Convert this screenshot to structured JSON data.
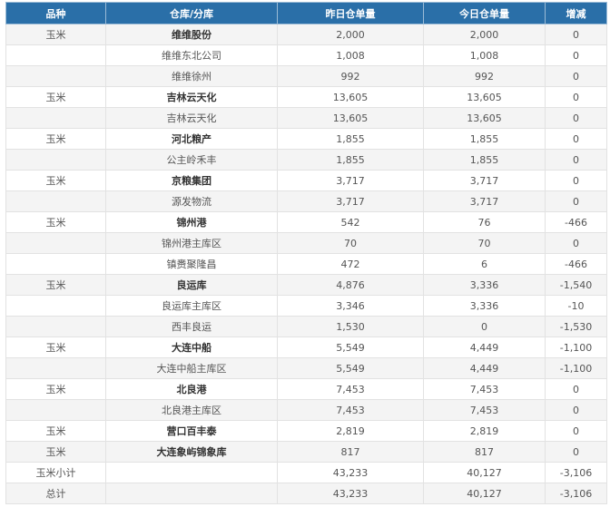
{
  "table": {
    "headers": [
      "品种",
      "仓库/分库",
      "昨日仓单量",
      "今日仓单量",
      "增减"
    ],
    "rows": [
      {
        "variety": "玉米",
        "warehouse": "维维股份",
        "yesterday": "2,000",
        "today": "2,000",
        "change": "0",
        "bold": true
      },
      {
        "variety": "",
        "warehouse": "维维东北公司",
        "yesterday": "1,008",
        "today": "1,008",
        "change": "0",
        "bold": false
      },
      {
        "variety": "",
        "warehouse": "维维徐州",
        "yesterday": "992",
        "today": "992",
        "change": "0",
        "bold": false
      },
      {
        "variety": "玉米",
        "warehouse": "吉林云天化",
        "yesterday": "13,605",
        "today": "13,605",
        "change": "0",
        "bold": true
      },
      {
        "variety": "",
        "warehouse": "吉林云天化",
        "yesterday": "13,605",
        "today": "13,605",
        "change": "0",
        "bold": false
      },
      {
        "variety": "玉米",
        "warehouse": "河北粮产",
        "yesterday": "1,855",
        "today": "1,855",
        "change": "0",
        "bold": true
      },
      {
        "variety": "",
        "warehouse": "公主岭禾丰",
        "yesterday": "1,855",
        "today": "1,855",
        "change": "0",
        "bold": false
      },
      {
        "variety": "玉米",
        "warehouse": "京粮集团",
        "yesterday": "3,717",
        "today": "3,717",
        "change": "0",
        "bold": true
      },
      {
        "variety": "",
        "warehouse": "源发物流",
        "yesterday": "3,717",
        "today": "3,717",
        "change": "0",
        "bold": false
      },
      {
        "variety": "玉米",
        "warehouse": "锦州港",
        "yesterday": "542",
        "today": "76",
        "change": "-466",
        "bold": true
      },
      {
        "variety": "",
        "warehouse": "锦州港主库区",
        "yesterday": "70",
        "today": "70",
        "change": "0",
        "bold": false
      },
      {
        "variety": "",
        "warehouse": "镇赉聚隆昌",
        "yesterday": "472",
        "today": "6",
        "change": "-466",
        "bold": false
      },
      {
        "variety": "玉米",
        "warehouse": "良运库",
        "yesterday": "4,876",
        "today": "3,336",
        "change": "-1,540",
        "bold": true
      },
      {
        "variety": "",
        "warehouse": "良运库主库区",
        "yesterday": "3,346",
        "today": "3,336",
        "change": "-10",
        "bold": false
      },
      {
        "variety": "",
        "warehouse": "西丰良运",
        "yesterday": "1,530",
        "today": "0",
        "change": "-1,530",
        "bold": false
      },
      {
        "variety": "玉米",
        "warehouse": "大连中船",
        "yesterday": "5,549",
        "today": "4,449",
        "change": "-1,100",
        "bold": true
      },
      {
        "variety": "",
        "warehouse": "大连中船主库区",
        "yesterday": "5,549",
        "today": "4,449",
        "change": "-1,100",
        "bold": false
      },
      {
        "variety": "玉米",
        "warehouse": "北良港",
        "yesterday": "7,453",
        "today": "7,453",
        "change": "0",
        "bold": true
      },
      {
        "variety": "",
        "warehouse": "北良港主库区",
        "yesterday": "7,453",
        "today": "7,453",
        "change": "0",
        "bold": false
      },
      {
        "variety": "玉米",
        "warehouse": "营口百丰泰",
        "yesterday": "2,819",
        "today": "2,819",
        "change": "0",
        "bold": true
      },
      {
        "variety": "玉米",
        "warehouse": "大连象屿锦象库",
        "yesterday": "817",
        "today": "817",
        "change": "0",
        "bold": true
      },
      {
        "variety": "玉米小计",
        "warehouse": "",
        "yesterday": "43,233",
        "today": "40,127",
        "change": "-3,106",
        "bold": false
      },
      {
        "variety": "总计",
        "warehouse": "",
        "yesterday": "43,233",
        "today": "40,127",
        "change": "-3,106",
        "bold": false
      }
    ]
  }
}
